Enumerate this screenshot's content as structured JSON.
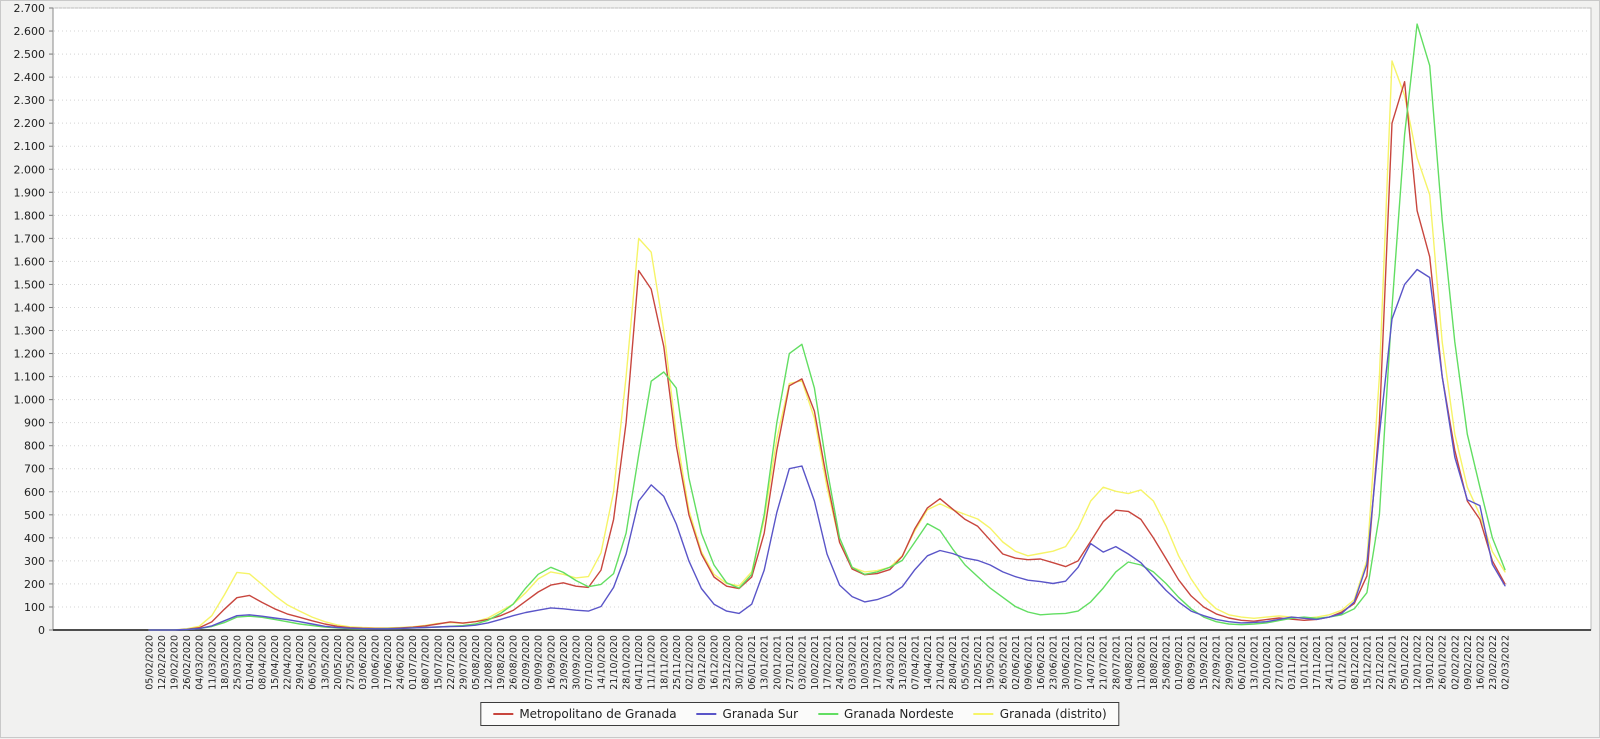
{
  "page": {
    "background": "#f1f1f0",
    "plot_background": "#ffffff",
    "grid_color": "#d4d4d4",
    "axis_color": "#4d4d4d",
    "border_color": "#bdbdbd"
  },
  "chart_data": {
    "type": "line",
    "title": "",
    "xlabel": "",
    "ylabel": "",
    "ylim": [
      0,
      2700
    ],
    "y_tick_step": 100,
    "grid": "horizontal-dotted",
    "legend_position": "bottom-center",
    "y_tick_labels": [
      "0",
      "100",
      "200",
      "300",
      "400",
      "500",
      "600",
      "700",
      "800",
      "900",
      "1.000",
      "1.100",
      "1.200",
      "1.300",
      "1.400",
      "1.500",
      "1.600",
      "1.700",
      "1.800",
      "1.900",
      "2.000",
      "2.100",
      "2.200",
      "2.300",
      "2.400",
      "2.500",
      "2.600",
      "2.700"
    ],
    "x": [
      "05/02/2020",
      "12/02/2020",
      "19/02/2020",
      "26/02/2020",
      "04/03/2020",
      "11/03/2020",
      "18/03/2020",
      "25/03/2020",
      "01/04/2020",
      "08/04/2020",
      "15/04/2020",
      "22/04/2020",
      "29/04/2020",
      "06/05/2020",
      "13/05/2020",
      "20/05/2020",
      "27/05/2020",
      "03/06/2020",
      "10/06/2020",
      "17/06/2020",
      "24/06/2020",
      "01/07/2020",
      "08/07/2020",
      "15/07/2020",
      "22/07/2020",
      "29/07/2020",
      "05/08/2020",
      "12/08/2020",
      "19/08/2020",
      "26/08/2020",
      "02/09/2020",
      "09/09/2020",
      "16/09/2020",
      "23/09/2020",
      "30/09/2020",
      "07/10/2020",
      "14/10/2020",
      "21/10/2020",
      "28/10/2020",
      "04/11/2020",
      "11/11/2020",
      "18/11/2020",
      "25/11/2020",
      "02/12/2020",
      "09/12/2020",
      "16/12/2020",
      "23/12/2020",
      "30/12/2020",
      "06/01/2021",
      "13/01/2021",
      "20/01/2021",
      "27/01/2021",
      "03/02/2021",
      "10/02/2021",
      "17/02/2021",
      "24/02/2021",
      "03/03/2021",
      "10/03/2021",
      "17/03/2021",
      "24/03/2021",
      "31/03/2021",
      "07/04/2021",
      "14/04/2021",
      "21/04/2021",
      "28/04/2021",
      "05/05/2021",
      "12/05/2021",
      "19/05/2021",
      "26/05/2021",
      "02/06/2021",
      "09/06/2021",
      "16/06/2021",
      "23/06/2021",
      "30/06/2021",
      "07/07/2021",
      "14/07/2021",
      "21/07/2021",
      "28/07/2021",
      "04/08/2021",
      "11/08/2021",
      "18/08/2021",
      "25/08/2021",
      "01/09/2021",
      "08/09/2021",
      "15/09/2021",
      "22/09/2021",
      "29/09/2021",
      "06/10/2021",
      "13/10/2021",
      "20/10/2021",
      "27/10/2021",
      "03/11/2021",
      "10/11/2021",
      "17/11/2021",
      "24/11/2021",
      "01/12/2021",
      "08/12/2021",
      "15/12/2021",
      "22/12/2021",
      "29/12/2021",
      "05/01/2022",
      "12/01/2022",
      "19/01/2022",
      "26/01/2022",
      "02/02/2022",
      "09/02/2022",
      "16/02/2022",
      "23/02/2022",
      "02/03/2022"
    ],
    "series": [
      {
        "name": "Metropolitano de Granada",
        "color": "#c8463e",
        "values": [
          0,
          0,
          0,
          3,
          10,
          35,
          90,
          140,
          150,
          120,
          92,
          70,
          55,
          40,
          26,
          16,
          10,
          8,
          7,
          7,
          9,
          12,
          18,
          26,
          35,
          30,
          36,
          46,
          62,
          85,
          125,
          165,
          195,
          205,
          190,
          185,
          260,
          480,
          900,
          1560,
          1480,
          1230,
          800,
          500,
          330,
          230,
          190,
          180,
          230,
          420,
          780,
          1060,
          1090,
          950,
          650,
          380,
          265,
          240,
          245,
          262,
          320,
          440,
          530,
          570,
          525,
          480,
          450,
          390,
          330,
          312,
          305,
          308,
          292,
          275,
          300,
          385,
          470,
          520,
          515,
          480,
          400,
          310,
          218,
          148,
          100,
          70,
          52,
          42,
          38,
          45,
          52,
          47,
          42,
          46,
          56,
          78,
          115,
          235,
          900,
          2200,
          2380,
          1820,
          1620,
          1100,
          780,
          560,
          480,
          300,
          200
        ]
      },
      {
        "name": "Granada Sur",
        "color": "#5a55c8",
        "values": [
          0,
          0,
          0,
          2,
          6,
          18,
          40,
          62,
          66,
          60,
          52,
          45,
          36,
          26,
          16,
          11,
          8,
          6,
          5,
          5,
          7,
          9,
          11,
          13,
          15,
          16,
          21,
          31,
          46,
          62,
          76,
          86,
          96,
          92,
          86,
          82,
          102,
          185,
          330,
          560,
          630,
          580,
          460,
          300,
          180,
          112,
          82,
          72,
          112,
          260,
          510,
          700,
          712,
          560,
          330,
          195,
          145,
          122,
          132,
          152,
          188,
          262,
          322,
          345,
          332,
          312,
          302,
          282,
          252,
          232,
          216,
          210,
          202,
          212,
          272,
          375,
          338,
          362,
          330,
          292,
          232,
          172,
          122,
          82,
          62,
          46,
          36,
          31,
          33,
          36,
          46,
          56,
          51,
          46,
          56,
          72,
          122,
          285,
          850,
          1350,
          1500,
          1565,
          1530,
          1100,
          750,
          565,
          540,
          285,
          192
        ]
      },
      {
        "name": "Granada Nordeste",
        "color": "#62de62",
        "values": [
          0,
          0,
          0,
          2,
          6,
          15,
          32,
          56,
          60,
          55,
          46,
          36,
          26,
          19,
          13,
          9,
          6,
          5,
          5,
          6,
          7,
          9,
          11,
          13,
          16,
          19,
          26,
          42,
          72,
          112,
          182,
          242,
          272,
          250,
          215,
          188,
          198,
          245,
          420,
          760,
          1080,
          1120,
          1050,
          660,
          420,
          282,
          205,
          182,
          242,
          500,
          900,
          1200,
          1240,
          1050,
          700,
          400,
          272,
          242,
          252,
          272,
          302,
          382,
          462,
          432,
          352,
          282,
          232,
          182,
          142,
          102,
          78,
          66,
          70,
          72,
          82,
          122,
          182,
          252,
          295,
          282,
          252,
          202,
          142,
          92,
          56,
          36,
          26,
          23,
          26,
          31,
          41,
          51,
          56,
          51,
          56,
          66,
          92,
          162,
          500,
          1400,
          2150,
          2630,
          2450,
          1780,
          1250,
          850,
          620,
          400,
          262
        ]
      },
      {
        "name": "Granada (distrito)",
        "color": "#f6f468",
        "values": [
          0,
          0,
          0,
          5,
          16,
          62,
          152,
          250,
          244,
          198,
          150,
          110,
          82,
          56,
          36,
          22,
          14,
          11,
          9,
          9,
          11,
          14,
          20,
          28,
          32,
          29,
          37,
          52,
          82,
          112,
          162,
          222,
          252,
          242,
          226,
          232,
          335,
          600,
          1100,
          1700,
          1640,
          1300,
          850,
          520,
          340,
          242,
          202,
          192,
          252,
          480,
          830,
          1070,
          1082,
          920,
          620,
          382,
          272,
          252,
          258,
          272,
          322,
          432,
          522,
          548,
          522,
          502,
          482,
          442,
          382,
          342,
          322,
          332,
          342,
          362,
          442,
          560,
          620,
          602,
          592,
          608,
          560,
          452,
          322,
          222,
          142,
          92,
          66,
          56,
          51,
          56,
          61,
          56,
          51,
          56,
          66,
          86,
          132,
          302,
          1100,
          2470,
          2320,
          2050,
          1890,
          1250,
          850,
          620,
          500,
          340,
          252
        ]
      }
    ]
  },
  "legend": {
    "items": [
      "Metropolitano de Granada",
      "Granada Sur",
      "Granada Nordeste",
      "Granada (distrito)"
    ]
  }
}
